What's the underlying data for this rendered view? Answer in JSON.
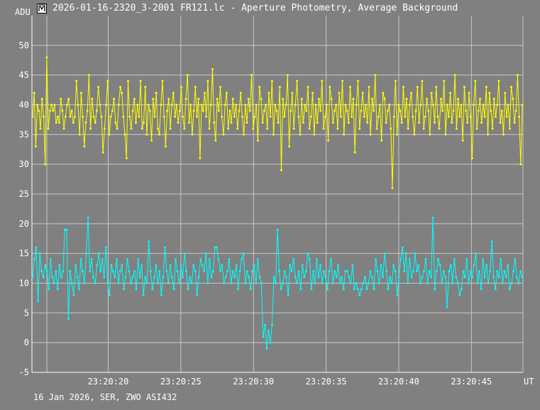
{
  "window": {
    "title": "2026-01-16-2320_3-2001 FR121.lc - Aperture Photometry, Average Background",
    "icon": "app-icon"
  },
  "footer": {
    "text": "16 Jan 2026, SER, ZWO ASI432"
  },
  "chart_data": {
    "type": "line",
    "ylabel": "ADU",
    "xlabel": "UT",
    "ylim": [
      -5,
      55
    ],
    "xlim": [
      "23:20:14.75",
      "23:20:48.55"
    ],
    "y_ticks": [
      -5,
      0,
      5,
      10,
      15,
      20,
      25,
      30,
      35,
      40,
      45,
      50
    ],
    "x_ticks": [
      "23:20:20",
      "23:20:25",
      "23:20:30",
      "23:20:35",
      "23:20:40",
      "23:20:45"
    ],
    "grid": true,
    "colors": {
      "background": "#808080",
      "grid": "#c8c8c8",
      "axis": "#ffffff"
    },
    "series": [
      {
        "color": "#ffff00",
        "t_start": "23:20:14.80",
        "t_end": "23:20:48.50",
        "values": [
          38,
          42,
          33,
          40,
          39,
          36,
          41,
          38,
          30,
          48,
          36,
          39,
          40,
          39,
          40,
          37,
          38,
          37,
          41,
          39,
          36,
          38,
          40,
          41,
          38,
          39,
          37,
          38,
          44,
          40,
          35,
          42,
          38,
          33,
          37,
          39,
          45,
          36,
          41,
          38,
          37,
          39,
          43,
          40,
          38,
          32,
          36,
          40,
          44,
          35,
          38,
          39,
          41,
          37,
          36,
          40,
          43,
          42,
          38,
          35,
          31,
          44,
          38,
          36,
          39,
          41,
          37,
          40,
          38,
          44,
          36,
          37,
          43,
          35,
          40,
          39,
          34,
          41,
          38,
          42,
          36,
          35,
          40,
          44,
          38,
          33,
          39,
          41,
          36,
          40,
          42,
          38,
          40,
          37,
          39,
          43,
          38,
          36,
          41,
          45,
          37,
          40,
          35,
          39,
          43,
          38,
          41,
          31,
          40,
          39,
          42,
          38,
          44,
          36,
          40,
          46,
          37,
          34,
          41,
          39,
          43,
          38,
          35,
          40,
          42,
          36,
          39,
          37,
          41,
          38,
          40,
          36,
          39,
          42,
          38,
          35,
          40,
          37,
          41,
          39,
          45,
          36,
          38,
          40,
          34,
          43,
          41,
          37,
          39,
          40,
          36,
          42,
          38,
          44,
          35,
          40,
          39,
          37,
          43,
          29,
          41,
          38,
          40,
          45,
          33,
          39,
          42,
          36,
          40,
          44,
          38,
          35,
          41,
          37,
          40,
          39,
          43,
          36,
          38,
          42,
          35,
          40,
          37,
          41,
          39,
          44,
          36,
          38,
          40,
          34,
          43,
          41,
          37,
          39,
          40,
          36,
          42,
          38,
          44,
          35,
          40,
          39,
          37,
          43,
          38,
          41,
          32,
          40,
          44,
          36,
          39,
          42,
          38,
          40,
          37,
          43,
          35,
          41,
          39,
          45,
          36,
          38,
          40,
          34,
          42,
          41,
          37,
          39,
          40,
          36,
          26,
          38,
          44,
          35,
          40,
          39,
          37,
          43,
          38,
          41,
          36,
          40,
          42,
          38,
          35,
          39,
          43,
          37,
          40,
          44,
          36,
          38,
          41,
          39,
          35,
          42,
          40,
          37,
          43,
          38,
          36,
          41,
          39,
          44,
          35,
          40,
          38,
          42,
          37,
          39,
          45,
          36,
          41,
          38,
          40,
          34,
          43,
          39,
          37,
          42,
          38,
          31,
          40,
          44,
          36,
          39,
          41,
          37,
          40,
          38,
          43,
          35,
          42,
          39,
          36,
          41,
          38,
          40,
          44,
          37,
          39,
          35,
          42,
          38,
          40,
          36,
          43,
          41,
          37,
          39,
          45,
          38,
          30,
          40
        ]
      },
      {
        "color": "#00ffff",
        "t_start": "23:20:14.80",
        "t_end": "23:20:48.50",
        "values": [
          11,
          14,
          16,
          7,
          15,
          12,
          11,
          13,
          12,
          9,
          14,
          11,
          10,
          12,
          9,
          13,
          11,
          12,
          19,
          19,
          4,
          12,
          10,
          8,
          13,
          11,
          9,
          14,
          12,
          10,
          15,
          21,
          12,
          14,
          11,
          10,
          13,
          15,
          12,
          14,
          11,
          16,
          10,
          8,
          13,
          12,
          11,
          14,
          10,
          12,
          13,
          9,
          11,
          14,
          12,
          10,
          11,
          12,
          9,
          14,
          11,
          13,
          8,
          11,
          10,
          17,
          12,
          9,
          11,
          13,
          10,
          12,
          8,
          11,
          16,
          12,
          10,
          13,
          11,
          9,
          14,
          12,
          10,
          13,
          11,
          15,
          12,
          9,
          11,
          10,
          13,
          12,
          8,
          11,
          14,
          13,
          12,
          15,
          10,
          14,
          11,
          12,
          16,
          16,
          14,
          12,
          13,
          10,
          11,
          12,
          14,
          10,
          12,
          11,
          13,
          9,
          12,
          14,
          15,
          10,
          12,
          11,
          9,
          12,
          13,
          10,
          14,
          11,
          10,
          1,
          3,
          -1,
          2,
          0,
          3,
          11,
          10,
          19,
          12,
          9,
          10,
          12,
          11,
          8,
          13,
          12,
          14,
          11,
          10,
          12,
          9,
          13,
          11,
          12,
          15,
          14,
          9,
          12,
          10,
          14,
          11,
          13,
          10,
          12,
          11,
          9,
          12,
          14,
          10,
          12,
          11,
          13,
          10,
          11,
          9,
          12,
          12,
          11,
          10,
          13,
          9,
          10,
          9,
          8,
          9,
          10,
          11,
          9,
          10,
          12,
          11,
          9,
          14,
          12,
          10,
          13,
          11,
          15,
          12,
          9,
          11,
          10,
          13,
          12,
          8,
          11,
          14,
          16,
          12,
          15,
          10,
          14,
          11,
          12,
          15,
          12,
          13,
          10,
          11,
          12,
          14,
          10,
          12,
          11,
          21,
          9,
          12,
          14,
          13,
          10,
          12,
          11,
          6,
          12,
          13,
          10,
          14,
          11,
          10,
          8,
          9,
          12,
          11,
          14,
          10,
          12,
          11,
          13,
          15,
          10,
          12,
          9,
          14,
          11,
          13,
          10,
          12,
          17,
          11,
          9,
          12,
          11,
          14,
          10,
          12,
          11,
          13,
          9,
          10,
          12,
          14,
          11,
          10,
          12,
          11
        ]
      }
    ]
  }
}
